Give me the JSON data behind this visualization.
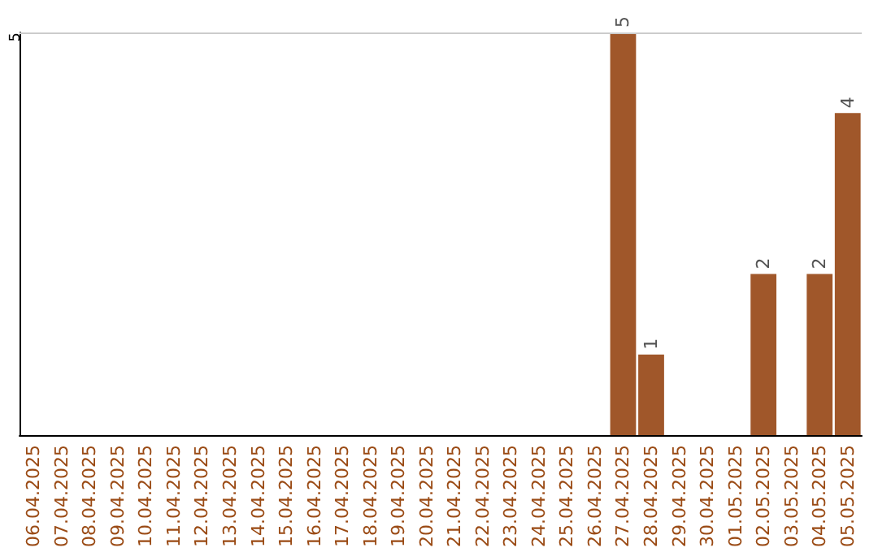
{
  "chart_data": {
    "type": "bar",
    "categories": [
      "06.04.2025",
      "07.04.2025",
      "08.04.2025",
      "09.04.2025",
      "10.04.2025",
      "11.04.2025",
      "12.04.2025",
      "13.04.2025",
      "14.04.2025",
      "15.04.2025",
      "16.04.2025",
      "17.04.2025",
      "18.04.2025",
      "19.04.2025",
      "20.04.2025",
      "21.04.2025",
      "22.04.2025",
      "23.04.2025",
      "24.04.2025",
      "25.04.2025",
      "26.04.2025",
      "27.04.2025",
      "28.04.2025",
      "29.04.2025",
      "30.04.2025",
      "01.05.2025",
      "02.05.2025",
      "03.05.2025",
      "04.05.2025",
      "05.05.2025"
    ],
    "values": [
      null,
      null,
      null,
      null,
      null,
      null,
      null,
      null,
      null,
      null,
      null,
      null,
      null,
      null,
      null,
      null,
      null,
      null,
      null,
      null,
      null,
      5,
      1,
      null,
      null,
      null,
      2,
      null,
      2,
      4
    ],
    "data_labels": true,
    "color": "#a0572a",
    "ylim": [
      0,
      5
    ],
    "ref_lines": [
      {
        "axis": "y",
        "value": 5,
        "label": "5",
        "color": "#cccccc"
      }
    ]
  }
}
